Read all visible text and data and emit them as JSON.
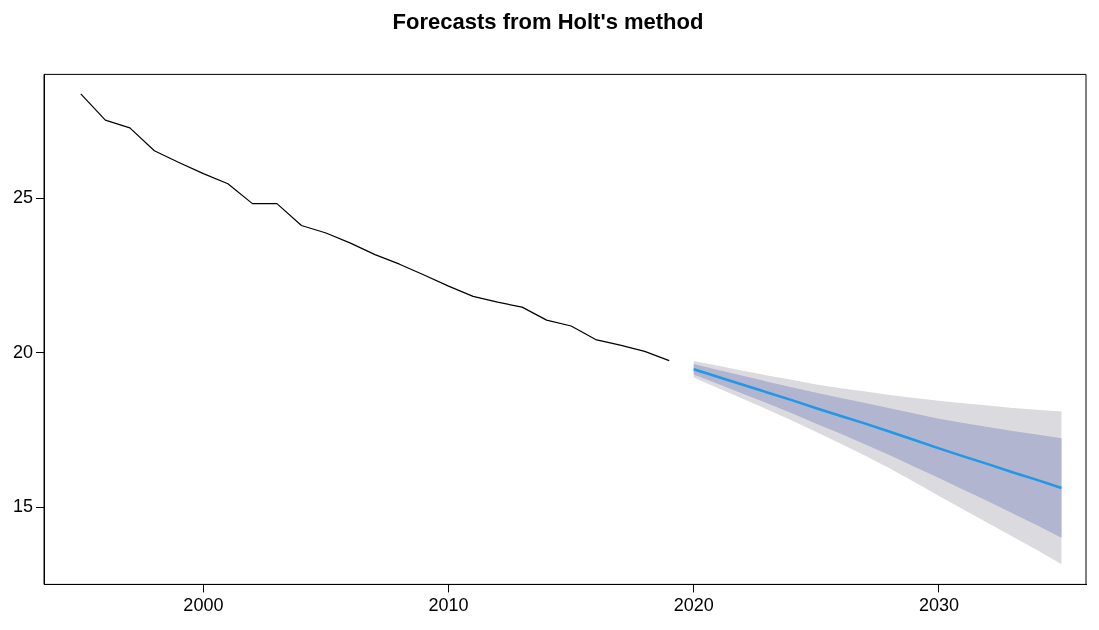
{
  "chart_data": {
    "type": "line",
    "title": "Forecasts from Holt's method",
    "xlim": [
      1993.5,
      2036
    ],
    "xticks": [
      2000,
      2010,
      2020,
      2030
    ],
    "ylim": [
      12.5,
      29
    ],
    "yticks": [
      15,
      20,
      25
    ],
    "grid": false,
    "legend": false,
    "series": [
      {
        "color": "#000000",
        "x": [
          1995,
          1996,
          1997,
          1998,
          1999,
          2000,
          2001,
          2002,
          2003,
          2004,
          2005,
          2006,
          2007,
          2008,
          2009,
          2010,
          2011,
          2012,
          2013,
          2014,
          2015,
          2016,
          2017,
          2018,
          2019
        ],
        "values": [
          28.37,
          27.52,
          27.27,
          26.53,
          26.15,
          25.79,
          25.46,
          24.82,
          24.82,
          24.11,
          23.87,
          23.54,
          23.17,
          22.86,
          22.51,
          22.15,
          21.82,
          21.63,
          21.47,
          21.05,
          20.86,
          20.42,
          20.24,
          20.04,
          19.74
        ]
      },
      {
        "color": "#dbdbdf",
        "x": [
          2020,
          2021,
          2022,
          2023,
          2024,
          2025,
          2026,
          2027,
          2028,
          2029,
          2030,
          2031,
          2032,
          2033,
          2034,
          2035
        ],
        "values": [
          null,
          null,
          null,
          null,
          null,
          null,
          null,
          null,
          null,
          null,
          null,
          null,
          null,
          null,
          null,
          null
        ],
        "upper": [
          19.73,
          19.57,
          19.41,
          19.26,
          19.12,
          18.97,
          18.85,
          18.74,
          18.63,
          18.53,
          18.44,
          18.36,
          18.29,
          18.21,
          18.15,
          18.09
        ],
        "lower": [
          19.19,
          18.85,
          18.51,
          18.16,
          17.8,
          17.43,
          17.05,
          16.66,
          16.25,
          15.81,
          15.36,
          14.92,
          14.49,
          14.05,
          13.61,
          13.15
        ]
      },
      {
        "color": "#b1b5cf",
        "x": [
          2020,
          2021,
          2022,
          2023,
          2024,
          2025,
          2026,
          2027,
          2028,
          2029,
          2030,
          2031,
          2032,
          2033,
          2034,
          2035
        ],
        "values": [
          null,
          null,
          null,
          null,
          null,
          null,
          null,
          null,
          null,
          null,
          null,
          null,
          null,
          null,
          null,
          null
        ],
        "upper": [
          19.63,
          19.44,
          19.25,
          19.06,
          18.88,
          18.7,
          18.53,
          18.37,
          18.2,
          18.03,
          17.86,
          17.72,
          17.59,
          17.46,
          17.35,
          17.23
        ],
        "lower": [
          19.29,
          18.98,
          18.67,
          18.36,
          18.04,
          17.7,
          17.37,
          17.03,
          16.68,
          16.31,
          15.94,
          15.56,
          15.19,
          14.8,
          14.41,
          14.01
        ]
      },
      {
        "color": "#2297e6",
        "x": [
          2020,
          2021,
          2022,
          2023,
          2024,
          2025,
          2026,
          2027,
          2028,
          2029,
          2030,
          2031,
          2032,
          2033,
          2034,
          2035
        ],
        "values": [
          19.46,
          19.21,
          18.96,
          18.71,
          18.46,
          18.2,
          17.95,
          17.7,
          17.44,
          17.17,
          16.9,
          16.64,
          16.39,
          16.13,
          15.88,
          15.62
        ]
      }
    ]
  }
}
